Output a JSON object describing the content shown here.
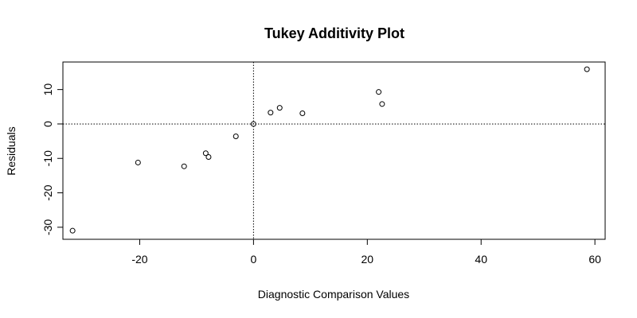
{
  "chart_data": {
    "type": "scatter",
    "title": "Tukey Additivity Plot",
    "xlabel": "Diagnostic Comparison Values",
    "ylabel": "Residuals",
    "xlim": [
      -33.5,
      61.8
    ],
    "ylim": [
      -33.5,
      18
    ],
    "xticks": [
      -20,
      0,
      20,
      40,
      60
    ],
    "yticks": [
      -30,
      -20,
      -10,
      0,
      10
    ],
    "grid": false,
    "reference_lines": {
      "vertical_x": 0,
      "horizontal_y": 0,
      "style": "dotted"
    },
    "points": [
      {
        "x": -31.8,
        "y": -31.0
      },
      {
        "x": -20.3,
        "y": -11.2
      },
      {
        "x": -12.2,
        "y": -12.3
      },
      {
        "x": -8.4,
        "y": -8.5
      },
      {
        "x": -7.9,
        "y": -9.6
      },
      {
        "x": -3.1,
        "y": -3.6
      },
      {
        "x": 0.0,
        "y": 0.0
      },
      {
        "x": 3.0,
        "y": 3.3
      },
      {
        "x": 4.6,
        "y": 4.7
      },
      {
        "x": 8.6,
        "y": 3.1
      },
      {
        "x": 22.0,
        "y": 9.3
      },
      {
        "x": 22.6,
        "y": 5.8
      },
      {
        "x": 58.6,
        "y": 15.9
      }
    ]
  }
}
